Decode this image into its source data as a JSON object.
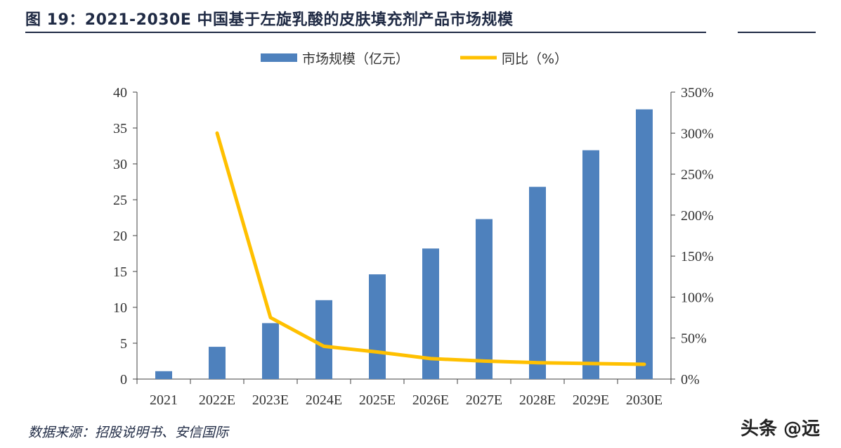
{
  "header": {
    "title": "图 19：2021-2030E 中国基于左旋乳酸的皮肤填充剂产品市场规模"
  },
  "footer": {
    "source": "数据来源：招股说明书、安信国际",
    "watermark": "头条 @远"
  },
  "colors": {
    "bar": "#4e81bd",
    "line": "#ffc000",
    "axis": "#404040",
    "text": "#333333"
  },
  "chart_data": {
    "type": "bar",
    "categories": [
      "2021",
      "2022E",
      "2023E",
      "2024E",
      "2025E",
      "2026E",
      "2027E",
      "2028E",
      "2029E",
      "2030E"
    ],
    "series": [
      {
        "name": "市场规模（亿元）",
        "type": "bar",
        "axis": "left",
        "values": [
          1.1,
          4.5,
          7.8,
          11.0,
          14.6,
          18.2,
          22.3,
          26.8,
          31.9,
          37.6
        ]
      },
      {
        "name": "同比（%）",
        "type": "line",
        "axis": "right",
        "values": [
          null,
          300,
          75,
          40,
          33,
          25,
          22,
          20,
          19,
          18
        ]
      }
    ],
    "y_left": {
      "min": 0,
      "max": 40,
      "ticks": [
        "0",
        "5",
        "10",
        "15",
        "20",
        "25",
        "30",
        "35",
        "40"
      ]
    },
    "y_right": {
      "min": 0,
      "max": 350,
      "ticks": [
        "0%",
        "50%",
        "100%",
        "150%",
        "200%",
        "250%",
        "300%",
        "350%"
      ]
    },
    "legend_position": "top-center",
    "grid": false
  }
}
